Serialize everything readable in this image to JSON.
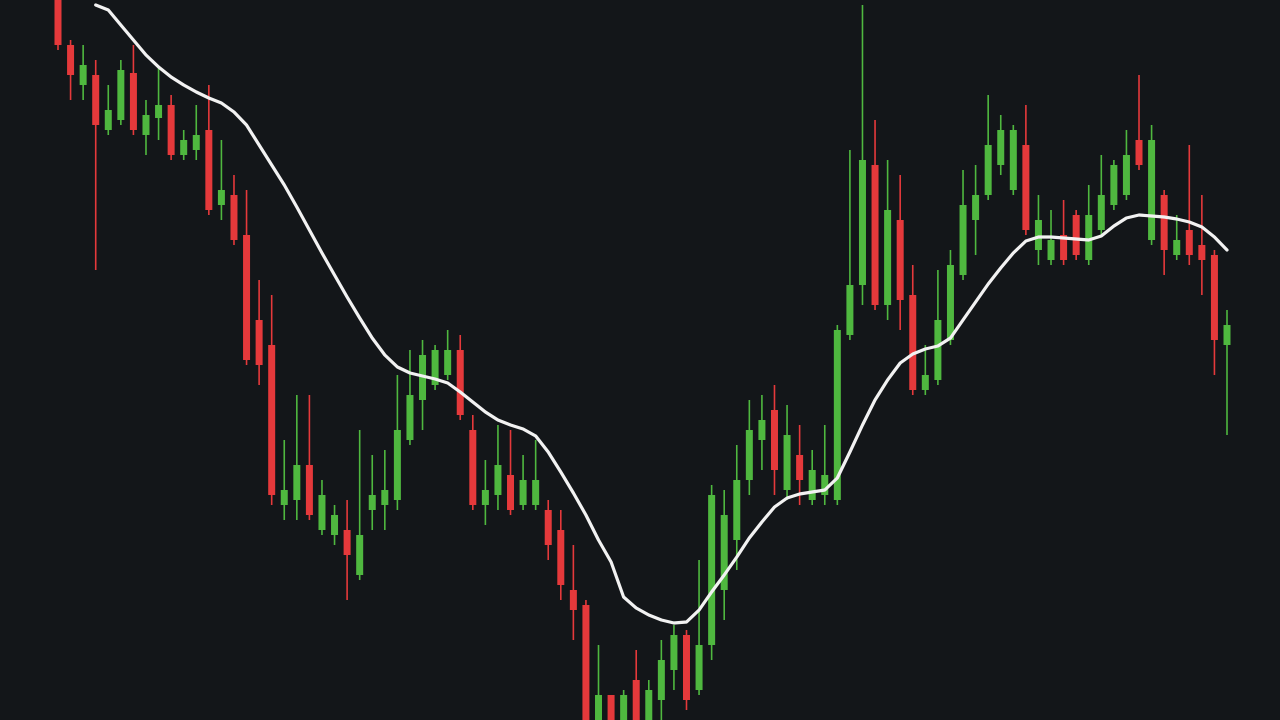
{
  "chart_data": {
    "type": "candlestick",
    "ylim": [
      0,
      720
    ],
    "background": "#131619",
    "up_color": "#4fb83f",
    "down_color": "#e5393b",
    "open": [
      720,
      675,
      635,
      645,
      590,
      600,
      647,
      585,
      602,
      615,
      565,
      570,
      590,
      515,
      525,
      485,
      400,
      375,
      215,
      220,
      255,
      190,
      185,
      190,
      145,
      210,
      215,
      220,
      280,
      320,
      335,
      345,
      370,
      290,
      215,
      225,
      245,
      215,
      215,
      210,
      190,
      130,
      115,
      0,
      25,
      0,
      40,
      0,
      20,
      50,
      85,
      30,
      75,
      130,
      180,
      240,
      280,
      310,
      230,
      265,
      220,
      225,
      220,
      385,
      435,
      555,
      415,
      500,
      425,
      330,
      340,
      380,
      445,
      500,
      525,
      555,
      530,
      575,
      470,
      460,
      485,
      505,
      460,
      490,
      515,
      525,
      580,
      480,
      525,
      465,
      490,
      475,
      465,
      375
    ],
    "high": [
      720,
      680,
      675,
      660,
      635,
      660,
      675,
      620,
      652,
      625,
      590,
      615,
      635,
      580,
      545,
      530,
      440,
      425,
      280,
      325,
      325,
      240,
      215,
      220,
      290,
      265,
      270,
      345,
      370,
      380,
      375,
      390,
      385,
      305,
      260,
      295,
      290,
      265,
      280,
      220,
      210,
      175,
      120,
      75,
      25,
      30,
      70,
      40,
      80,
      95,
      90,
      160,
      235,
      230,
      275,
      320,
      325,
      335,
      315,
      295,
      270,
      295,
      395,
      570,
      715,
      600,
      560,
      545,
      455,
      375,
      450,
      470,
      550,
      555,
      625,
      605,
      595,
      615,
      525,
      510,
      520,
      510,
      535,
      565,
      560,
      590,
      645,
      595,
      530,
      505,
      575,
      525,
      470,
      410
    ],
    "low": [
      670,
      620,
      620,
      450,
      585,
      595,
      585,
      565,
      580,
      560,
      560,
      560,
      505,
      500,
      475,
      355,
      335,
      215,
      200,
      200,
      200,
      185,
      175,
      120,
      140,
      190,
      190,
      210,
      275,
      290,
      330,
      340,
      300,
      210,
      195,
      210,
      205,
      210,
      210,
      160,
      120,
      80,
      0,
      0,
      0,
      0,
      0,
      0,
      0,
      30,
      10,
      25,
      60,
      100,
      150,
      225,
      250,
      225,
      220,
      215,
      215,
      215,
      215,
      380,
      415,
      410,
      400,
      390,
      325,
      325,
      335,
      375,
      440,
      465,
      520,
      545,
      525,
      485,
      455,
      455,
      455,
      460,
      455,
      485,
      510,
      520,
      550,
      475,
      445,
      460,
      455,
      425,
      345,
      285
    ],
    "close": [
      675,
      645,
      655,
      595,
      610,
      650,
      590,
      605,
      615,
      565,
      580,
      585,
      510,
      530,
      480,
      360,
      355,
      225,
      230,
      255,
      205,
      225,
      205,
      165,
      185,
      225,
      230,
      290,
      325,
      365,
      370,
      370,
      305,
      215,
      230,
      255,
      210,
      240,
      240,
      175,
      135,
      110,
      0,
      25,
      0,
      25,
      0,
      30,
      60,
      85,
      20,
      75,
      225,
      205,
      240,
      290,
      300,
      250,
      285,
      240,
      250,
      245,
      390,
      435,
      560,
      415,
      510,
      420,
      330,
      345,
      400,
      455,
      515,
      525,
      575,
      590,
      590,
      490,
      500,
      480,
      460,
      465,
      505,
      525,
      555,
      565,
      555,
      580,
      470,
      480,
      465,
      460,
      380,
      395
    ],
    "line": {
      "color": "#f2f2f2",
      "values": [
        null,
        null,
        null,
        715,
        710,
        695,
        680,
        665,
        653,
        643,
        635,
        628,
        622,
        617,
        608,
        595,
        575,
        555,
        535,
        513,
        490,
        467,
        445,
        423,
        402,
        382,
        365,
        353,
        347,
        344,
        341,
        337,
        328,
        318,
        308,
        300,
        295,
        291,
        284,
        268,
        248,
        227,
        205,
        180,
        158,
        123,
        112,
        105,
        100,
        97,
        98,
        110,
        128,
        145,
        163,
        182,
        198,
        213,
        222,
        226,
        228,
        230,
        242,
        268,
        295,
        320,
        340,
        357,
        366,
        371,
        374,
        382,
        400,
        418,
        436,
        452,
        467,
        479,
        483,
        483,
        482,
        481,
        480,
        484,
        494,
        502,
        505,
        504,
        503,
        501,
        498,
        493,
        483,
        470
      ]
    }
  }
}
